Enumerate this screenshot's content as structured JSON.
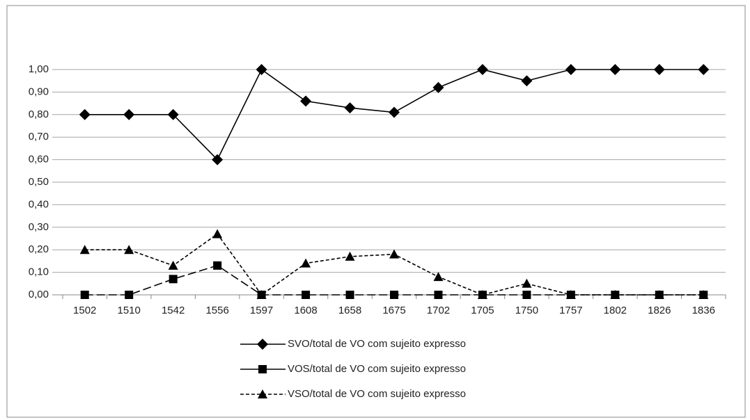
{
  "chart_data": {
    "type": "line",
    "categories": [
      "1502",
      "1510",
      "1542",
      "1556",
      "1597",
      "1608",
      "1658",
      "1675",
      "1702",
      "1705",
      "1750",
      "1757",
      "1802",
      "1826",
      "1836"
    ],
    "series": [
      {
        "name": "SVO/total de VO com sujeito expresso",
        "color": "#000000",
        "marker": "diamond",
        "dash": "solid",
        "values": [
          0.8,
          0.8,
          0.8,
          0.6,
          1.0,
          0.86,
          0.83,
          0.81,
          0.92,
          1.0,
          0.95,
          1.0,
          1.0,
          1.0,
          1.0
        ]
      },
      {
        "name": "VOS/total de VO com sujeito expresso",
        "color": "#000000",
        "marker": "square",
        "dash": "long",
        "values": [
          0,
          0,
          0.07,
          0.13,
          0,
          0,
          0,
          0,
          0,
          0,
          0,
          0,
          0,
          0,
          0
        ]
      },
      {
        "name": "VSO/total de VO com sujeito expresso",
        "color": "#000000",
        "marker": "triangle",
        "dash": "short",
        "values": [
          0.2,
          0.2,
          0.13,
          0.27,
          0,
          0.14,
          0.17,
          0.18,
          0.08,
          0,
          0.05,
          0,
          0,
          0,
          0
        ]
      }
    ],
    "ylim": [
      0,
      1
    ],
    "yticks": [
      {
        "value": 0,
        "label": "0,00"
      },
      {
        "value": 0.1,
        "label": "0,10"
      },
      {
        "value": 0.2,
        "label": "0,20"
      },
      {
        "value": 0.3,
        "label": "0,30"
      },
      {
        "value": 0.4,
        "label": "0,40"
      },
      {
        "value": 0.5,
        "label": "0,50"
      },
      {
        "value": 0.6,
        "label": "0,60"
      },
      {
        "value": 0.7,
        "label": "0,70"
      },
      {
        "value": 0.8,
        "label": "0,80"
      },
      {
        "value": 0.9,
        "label": "0,90"
      },
      {
        "value": 1,
        "label": "1,00"
      }
    ],
    "grid": true,
    "legend": "bottom"
  }
}
